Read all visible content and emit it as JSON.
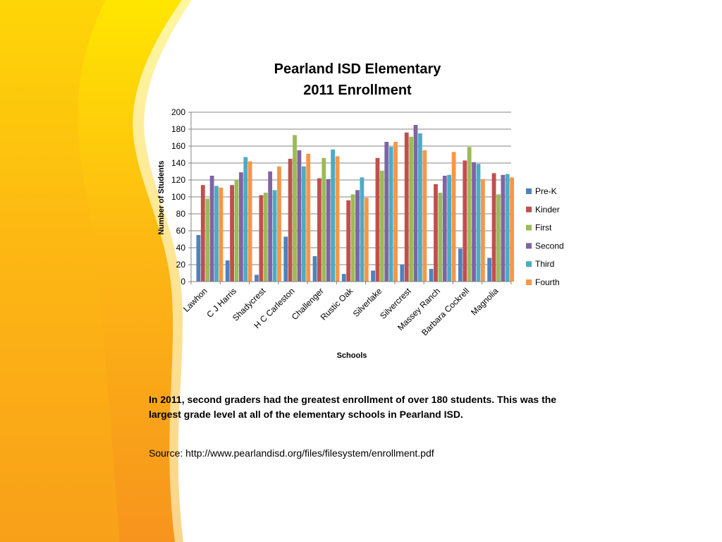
{
  "chart_data": {
    "type": "bar",
    "title": [
      "Pearland ISD Elementary",
      "2011 Enrollment"
    ],
    "xlabel": "Schools",
    "ylabel": "Number of Students",
    "ylim": [
      0,
      200
    ],
    "yticks": [
      0,
      20,
      40,
      60,
      80,
      100,
      120,
      140,
      160,
      180,
      200
    ],
    "grid": true,
    "legend_position": "right",
    "categories": [
      "Lawhon",
      "C J Harris",
      "Shadycrest",
      "H C Carleston",
      "Challenger",
      "Rustic Oak",
      "Silverlake",
      "Silvercrest",
      "Massey Ranch",
      "Barbara Cockrell",
      "Magnolia"
    ],
    "series": [
      {
        "name": "Pre-K",
        "color": "#4F81BD",
        "values": [
          55,
          25,
          8,
          53,
          30,
          9,
          13,
          20,
          15,
          39,
          28
        ]
      },
      {
        "name": "Kinder",
        "color": "#C0504D",
        "values": [
          114,
          114,
          102,
          145,
          122,
          96,
          146,
          176,
          115,
          143,
          128
        ]
      },
      {
        "name": "First",
        "color": "#9BBB59",
        "values": [
          98,
          120,
          105,
          173,
          146,
          103,
          131,
          171,
          105,
          159,
          103
        ]
      },
      {
        "name": "Second",
        "color": "#8064A2",
        "values": [
          125,
          129,
          130,
          155,
          121,
          108,
          165,
          185,
          125,
          141,
          126
        ]
      },
      {
        "name": "Third",
        "color": "#4BACC6",
        "values": [
          113,
          147,
          108,
          136,
          156,
          123,
          159,
          175,
          126,
          139,
          127
        ]
      },
      {
        "name": "Fourth",
        "color": "#F79646",
        "values": [
          111,
          142,
          136,
          151,
          148,
          99,
          165,
          155,
          153,
          121,
          123
        ]
      }
    ]
  },
  "caption": "In 2011, second graders had the greatest enrollment of over 180 students. This was the largest grade level at all of the elementary schools in Pearland ISD.",
  "source": "Source: http://www.pearlandisd.org/files/filesystem/enrollment.pdf"
}
